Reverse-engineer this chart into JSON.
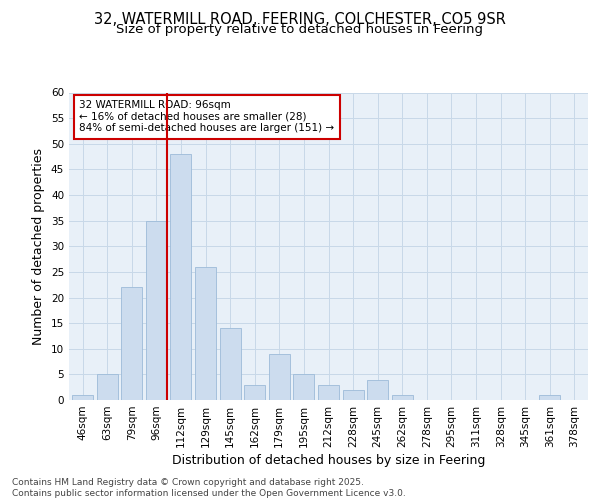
{
  "title_line1": "32, WATERMILL ROAD, FEERING, COLCHESTER, CO5 9SR",
  "title_line2": "Size of property relative to detached houses in Feering",
  "xlabel": "Distribution of detached houses by size in Feering",
  "ylabel": "Number of detached properties",
  "categories": [
    "46sqm",
    "63sqm",
    "79sqm",
    "96sqm",
    "112sqm",
    "129sqm",
    "145sqm",
    "162sqm",
    "179sqm",
    "195sqm",
    "212sqm",
    "228sqm",
    "245sqm",
    "262sqm",
    "278sqm",
    "295sqm",
    "311sqm",
    "328sqm",
    "345sqm",
    "361sqm",
    "378sqm"
  ],
  "values": [
    1,
    5,
    22,
    35,
    48,
    26,
    14,
    3,
    9,
    5,
    3,
    2,
    4,
    1,
    0,
    0,
    0,
    0,
    0,
    1,
    0
  ],
  "bar_color": "#ccdcee",
  "bar_edgecolor": "#9dbbd8",
  "vline_x_index": 3,
  "vline_color": "#cc0000",
  "annotation_text": "32 WATERMILL ROAD: 96sqm\n← 16% of detached houses are smaller (28)\n84% of semi-detached houses are larger (151) →",
  "annotation_box_facecolor": "#ffffff",
  "annotation_box_edgecolor": "#cc0000",
  "ylim": [
    0,
    60
  ],
  "yticks": [
    0,
    5,
    10,
    15,
    20,
    25,
    30,
    35,
    40,
    45,
    50,
    55,
    60
  ],
  "grid_color": "#c8d8e8",
  "background_color": "#ffffff",
  "plot_bg_color": "#e8f0f8",
  "footer_text": "Contains HM Land Registry data © Crown copyright and database right 2025.\nContains public sector information licensed under the Open Government Licence v3.0.",
  "title_fontsize": 10.5,
  "subtitle_fontsize": 9.5,
  "axis_label_fontsize": 9,
  "tick_fontsize": 7.5,
  "annotation_fontsize": 7.5,
  "footer_fontsize": 6.5
}
